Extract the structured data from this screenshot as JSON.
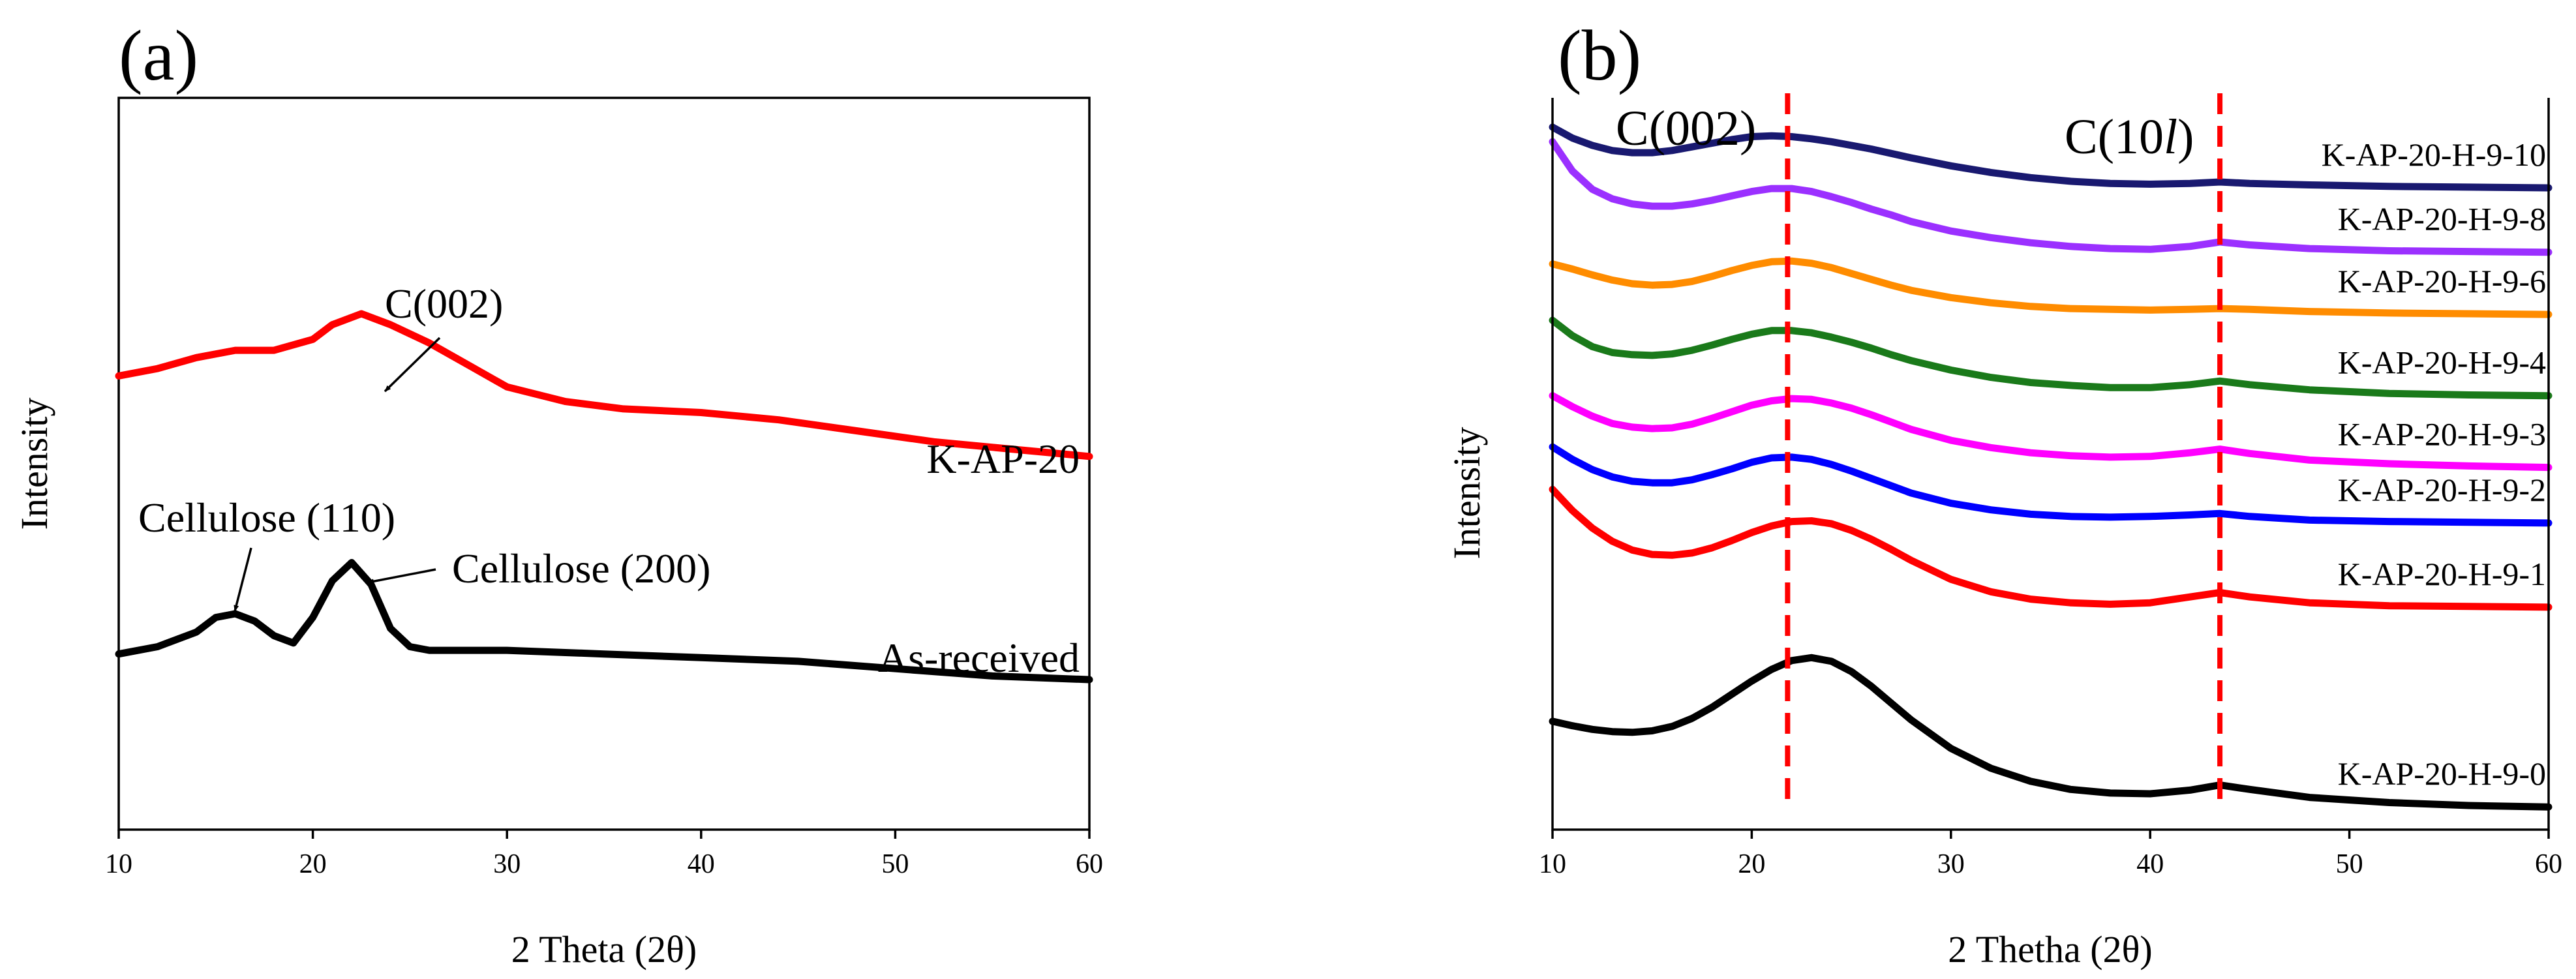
{
  "chart_data": [
    {
      "panel": "(a)",
      "type": "line",
      "xlabel": "2 Theta (2θ)",
      "ylabel": "Intensity",
      "xlim": [
        10,
        60
      ],
      "xticks": [
        10,
        20,
        30,
        40,
        50,
        60
      ],
      "y_tick_labels": false,
      "grid": false,
      "series": [
        {
          "name": "K-AP-20",
          "color": "#ff0000",
          "x": [
            10,
            12,
            14,
            16,
            18,
            20,
            21,
            22.5,
            24,
            26,
            28,
            30,
            33,
            36,
            40,
            44,
            48,
            52,
            56,
            60
          ],
          "y": [
            0.62,
            0.63,
            0.645,
            0.655,
            0.655,
            0.67,
            0.69,
            0.705,
            0.69,
            0.665,
            0.635,
            0.605,
            0.585,
            0.575,
            0.57,
            0.56,
            0.545,
            0.53,
            0.52,
            0.51
          ]
        },
        {
          "name": "As-received",
          "color": "#000000",
          "x": [
            10,
            12,
            14,
            15,
            16,
            17,
            18,
            19,
            20,
            21,
            22,
            23,
            24,
            25,
            26,
            28,
            30,
            35,
            40,
            45,
            50,
            55,
            60
          ],
          "y": [
            0.24,
            0.25,
            0.27,
            0.29,
            0.295,
            0.285,
            0.265,
            0.255,
            0.29,
            0.34,
            0.365,
            0.335,
            0.275,
            0.25,
            0.245,
            0.245,
            0.245,
            0.24,
            0.235,
            0.23,
            0.22,
            0.21,
            0.205
          ]
        }
      ],
      "curve_labels": [
        "K-AP-20",
        "As-received"
      ],
      "annotations": [
        "C(002)",
        "Cellulose (110)",
        "Cellulose (200)"
      ]
    },
    {
      "panel": "(b)",
      "type": "line",
      "xlabel": "2 Thetha (2θ)",
      "ylabel": "Intensity",
      "xlim": [
        10,
        60
      ],
      "xticks": [
        10,
        20,
        30,
        40,
        50,
        60
      ],
      "y_tick_labels": false,
      "grid": false,
      "reference_lines": [
        {
          "label": "C(002)",
          "x": 21.8,
          "color": "#ff0000",
          "style": "dashed"
        },
        {
          "label": "C(10l)",
          "x": 43.5,
          "color": "#ff0000",
          "style": "dashed"
        }
      ],
      "x": [
        10,
        11,
        12,
        13,
        14,
        15,
        16,
        17,
        18,
        19,
        20,
        21,
        22,
        23,
        24,
        25,
        26,
        27,
        28,
        30,
        32,
        34,
        36,
        38,
        40,
        42,
        43.5,
        45,
        48,
        52,
        56,
        60
      ],
      "series": [
        {
          "name": "K-AP-20-H-9-10",
          "color": "#191970",
          "y": [
            0.96,
            0.945,
            0.935,
            0.928,
            0.925,
            0.925,
            0.928,
            0.933,
            0.938,
            0.943,
            0.947,
            0.948,
            0.947,
            0.944,
            0.94,
            0.935,
            0.93,
            0.924,
            0.918,
            0.907,
            0.898,
            0.891,
            0.886,
            0.883,
            0.882,
            0.883,
            0.885,
            0.883,
            0.881,
            0.879,
            0.878,
            0.877
          ]
        },
        {
          "name": "K-AP-20-H-9-8",
          "color": "#9b30ff",
          "y": [
            0.94,
            0.9,
            0.875,
            0.862,
            0.855,
            0.852,
            0.852,
            0.855,
            0.86,
            0.866,
            0.872,
            0.876,
            0.876,
            0.872,
            0.865,
            0.857,
            0.848,
            0.84,
            0.831,
            0.818,
            0.809,
            0.802,
            0.797,
            0.794,
            0.793,
            0.797,
            0.803,
            0.799,
            0.794,
            0.791,
            0.79,
            0.789
          ]
        },
        {
          "name": "K-AP-20-H-9-6",
          "color": "#ff8c00",
          "y": [
            0.773,
            0.766,
            0.758,
            0.751,
            0.746,
            0.744,
            0.745,
            0.749,
            0.756,
            0.764,
            0.771,
            0.776,
            0.777,
            0.774,
            0.768,
            0.76,
            0.752,
            0.744,
            0.737,
            0.727,
            0.72,
            0.715,
            0.712,
            0.711,
            0.71,
            0.711,
            0.712,
            0.711,
            0.708,
            0.706,
            0.705,
            0.704
          ]
        },
        {
          "name": "K-AP-20-H-9-4",
          "color": "#1a7a1a",
          "y": [
            0.696,
            0.675,
            0.66,
            0.652,
            0.649,
            0.648,
            0.65,
            0.655,
            0.662,
            0.67,
            0.677,
            0.682,
            0.682,
            0.679,
            0.673,
            0.666,
            0.658,
            0.649,
            0.641,
            0.628,
            0.618,
            0.611,
            0.607,
            0.604,
            0.604,
            0.608,
            0.613,
            0.608,
            0.601,
            0.596,
            0.594,
            0.593
          ]
        },
        {
          "name": "K-AP-20-H-9-3",
          "color": "#ff00ff",
          "y": [
            0.593,
            0.578,
            0.565,
            0.555,
            0.55,
            0.548,
            0.549,
            0.554,
            0.562,
            0.571,
            0.58,
            0.586,
            0.589,
            0.588,
            0.583,
            0.576,
            0.567,
            0.557,
            0.547,
            0.532,
            0.522,
            0.515,
            0.511,
            0.509,
            0.51,
            0.515,
            0.52,
            0.514,
            0.505,
            0.5,
            0.497,
            0.495
          ]
        },
        {
          "name": "K-AP-20-H-9-2",
          "color": "#0000ff",
          "y": [
            0.523,
            0.506,
            0.492,
            0.482,
            0.476,
            0.474,
            0.474,
            0.478,
            0.485,
            0.493,
            0.502,
            0.508,
            0.509,
            0.506,
            0.499,
            0.49,
            0.48,
            0.47,
            0.46,
            0.446,
            0.437,
            0.431,
            0.428,
            0.427,
            0.428,
            0.43,
            0.432,
            0.428,
            0.423,
            0.421,
            0.42,
            0.419
          ]
        },
        {
          "name": "K-AP-20-H-9-1",
          "color": "#ff0000",
          "y": [
            0.465,
            0.436,
            0.412,
            0.394,
            0.382,
            0.376,
            0.375,
            0.378,
            0.385,
            0.395,
            0.406,
            0.415,
            0.421,
            0.422,
            0.418,
            0.409,
            0.397,
            0.383,
            0.368,
            0.342,
            0.325,
            0.315,
            0.31,
            0.308,
            0.31,
            0.318,
            0.324,
            0.318,
            0.31,
            0.306,
            0.305,
            0.304
          ]
        },
        {
          "name": "K-AP-20-H-9-0",
          "color": "#000000",
          "y": [
            0.148,
            0.142,
            0.137,
            0.134,
            0.133,
            0.135,
            0.141,
            0.152,
            0.167,
            0.185,
            0.203,
            0.219,
            0.231,
            0.235,
            0.23,
            0.216,
            0.196,
            0.173,
            0.15,
            0.111,
            0.084,
            0.066,
            0.055,
            0.05,
            0.049,
            0.054,
            0.061,
            0.055,
            0.044,
            0.037,
            0.033,
            0.031
          ]
        }
      ]
    }
  ]
}
